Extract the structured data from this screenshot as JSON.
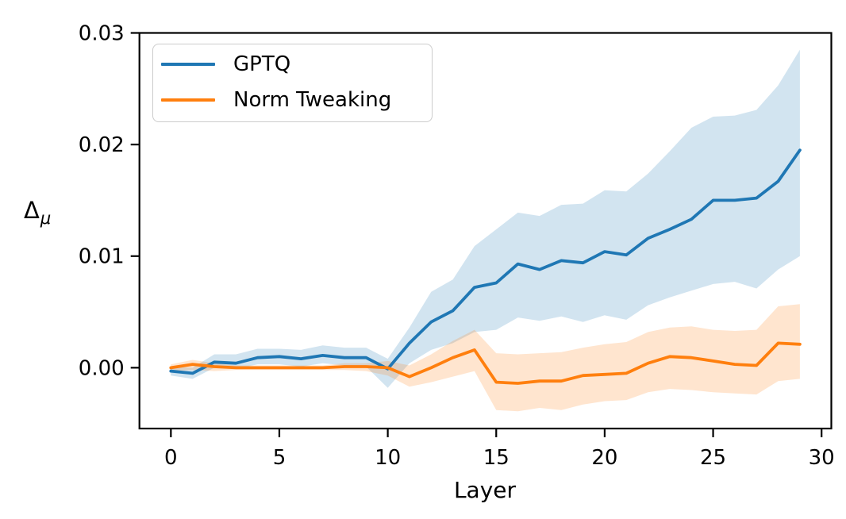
{
  "figure": {
    "background": "#ffffff",
    "ylabel_base": "Δ",
    "ylabel_sub": "μ"
  },
  "chart_data": {
    "type": "line",
    "xlabel": "Layer",
    "ylabel": "Δ_μ",
    "grid": false,
    "legend_position": "upper left",
    "xlim": [
      -1.45,
      30.45
    ],
    "ylim": [
      -0.00545,
      0.03
    ],
    "xticks": [
      {
        "v": 0,
        "label": "0"
      },
      {
        "v": 5,
        "label": "5"
      },
      {
        "v": 10,
        "label": "10"
      },
      {
        "v": 15,
        "label": "15"
      },
      {
        "v": 20,
        "label": "20"
      },
      {
        "v": 25,
        "label": "25"
      },
      {
        "v": 30,
        "label": "30"
      }
    ],
    "yticks": [
      {
        "v": 0.0,
        "label": "0.00"
      },
      {
        "v": 0.01,
        "label": "0.01"
      },
      {
        "v": 0.02,
        "label": "0.02"
      },
      {
        "v": 0.03,
        "label": "0.03"
      }
    ],
    "x": [
      0,
      1,
      2,
      3,
      4,
      5,
      6,
      7,
      8,
      9,
      10,
      11,
      12,
      13,
      14,
      15,
      16,
      17,
      18,
      19,
      20,
      21,
      22,
      23,
      24,
      25,
      26,
      27,
      28,
      29
    ],
    "series": [
      {
        "name": "GPTQ",
        "color": "#1f77b4",
        "band_alpha": 0.2,
        "mean": [
          -0.0003,
          -0.0005,
          0.0005,
          0.0004,
          0.0009,
          0.001,
          0.0008,
          0.0011,
          0.0009,
          0.0009,
          -0.0001,
          0.0022,
          0.0041,
          0.0051,
          0.0072,
          0.0076,
          0.0093,
          0.0088,
          0.0096,
          0.0094,
          0.0104,
          0.0101,
          0.0116,
          0.0124,
          0.0133,
          0.015,
          0.015,
          0.0152,
          0.0167,
          0.0195
        ],
        "lower": [
          -0.0007,
          -0.001,
          0.0,
          -0.0001,
          0.0003,
          0.0003,
          0.0001,
          0.0004,
          0.0002,
          0.0001,
          -0.0018,
          0.0004,
          0.0016,
          0.0022,
          0.0032,
          0.0034,
          0.0045,
          0.0042,
          0.0046,
          0.0041,
          0.0047,
          0.0043,
          0.0056,
          0.0063,
          0.0069,
          0.0075,
          0.0077,
          0.0071,
          0.0088,
          0.01
        ],
        "upper": [
          0.0001,
          0.0,
          0.0012,
          0.0012,
          0.0017,
          0.0017,
          0.0016,
          0.002,
          0.0018,
          0.0018,
          0.0008,
          0.0036,
          0.0068,
          0.0079,
          0.0109,
          0.0124,
          0.0139,
          0.0136,
          0.0146,
          0.0147,
          0.0159,
          0.0158,
          0.0174,
          0.0194,
          0.0215,
          0.0225,
          0.0226,
          0.0231,
          0.0253,
          0.0285
        ]
      },
      {
        "name": "Norm Tweaking",
        "color": "#ff7f0e",
        "band_alpha": 0.2,
        "mean": [
          0.0,
          0.0003,
          0.0001,
          0.0,
          0.0,
          0.0,
          0.0,
          0.0,
          0.0001,
          0.0001,
          0.0,
          -0.0008,
          0.0,
          0.0009,
          0.0016,
          -0.0013,
          -0.0014,
          -0.0012,
          -0.0012,
          -0.0007,
          -0.0006,
          -0.0005,
          0.0004,
          0.001,
          0.0009,
          0.0006,
          0.0003,
          0.0002,
          0.0022,
          0.0021
        ],
        "lower": [
          -0.0003,
          -0.0002,
          -0.0003,
          -0.0002,
          -0.0002,
          -0.0002,
          -0.0002,
          -0.0002,
          -0.0002,
          -0.0003,
          -0.0007,
          -0.0017,
          -0.0013,
          -0.0008,
          -0.0003,
          -0.0038,
          -0.0039,
          -0.0036,
          -0.0038,
          -0.0033,
          -0.003,
          -0.0029,
          -0.0022,
          -0.0019,
          -0.002,
          -0.0022,
          -0.0023,
          -0.0024,
          -0.0012,
          -0.001
        ],
        "upper": [
          0.0003,
          0.0007,
          0.0004,
          0.0002,
          0.0002,
          0.0002,
          0.0002,
          0.0002,
          0.0004,
          0.0004,
          0.0006,
          0.0002,
          0.0012,
          0.0024,
          0.0034,
          0.0013,
          0.0012,
          0.0013,
          0.0014,
          0.0018,
          0.0021,
          0.0023,
          0.0032,
          0.0036,
          0.0037,
          0.0034,
          0.0033,
          0.0034,
          0.0055,
          0.0057
        ]
      }
    ]
  }
}
